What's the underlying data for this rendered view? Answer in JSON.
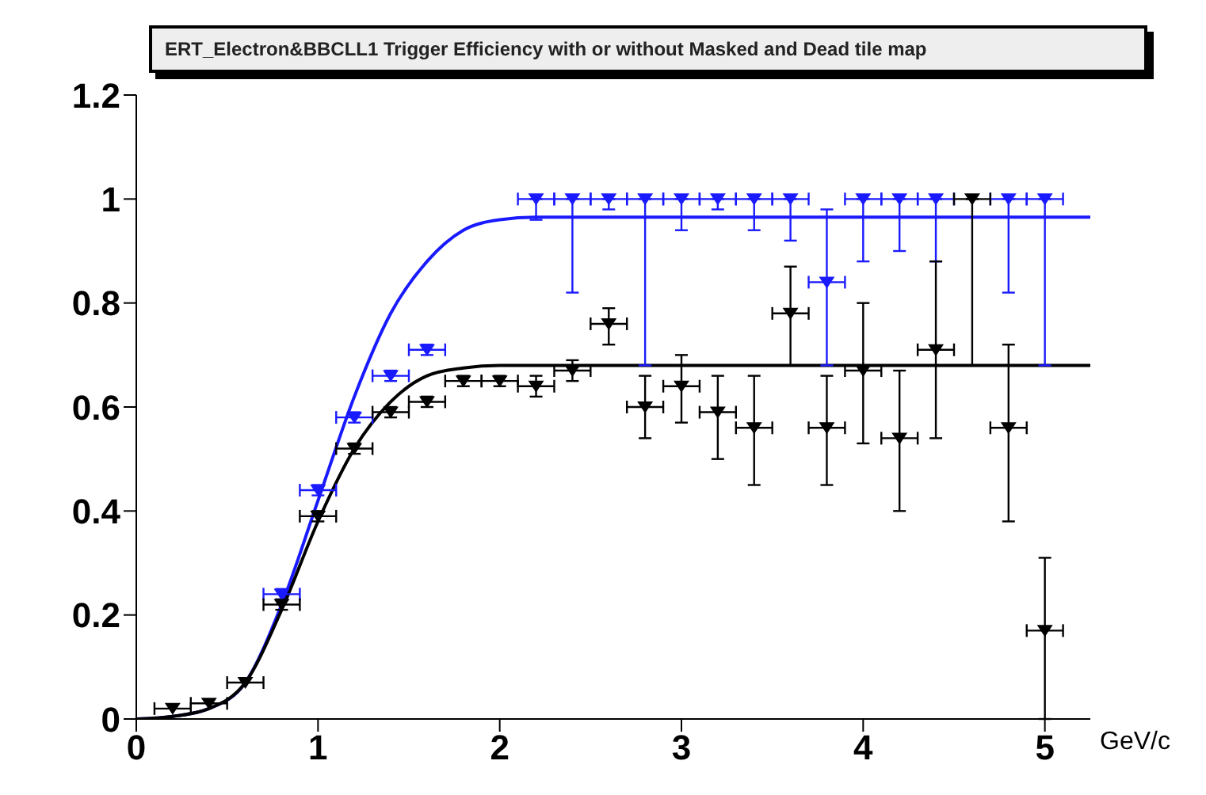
{
  "chart_data": {
    "type": "scatter",
    "title": "ERT_Electron&BBCLL1 Trigger Efficiency with or without Masked and Dead tile map",
    "xlabel": "GeV/c",
    "xlim": [
      0,
      5.25
    ],
    "xticks": [
      0,
      1,
      2,
      3,
      4,
      5
    ],
    "ylim": [
      0,
      1.2
    ],
    "yticks": [
      0,
      0.2,
      0.4,
      0.6,
      0.8,
      1,
      1.2
    ],
    "grid": false,
    "series": [
      {
        "type": "line",
        "marker": "none",
        "color": "#1a1aff",
        "x": [
          0,
          0.2,
          0.4,
          0.6,
          0.8,
          1.0,
          1.2,
          1.4,
          1.6,
          1.8,
          2.0,
          2.2,
          5.25
        ],
        "values": [
          0,
          0.005,
          0.02,
          0.07,
          0.22,
          0.42,
          0.62,
          0.78,
          0.88,
          0.94,
          0.96,
          0.965,
          0.965
        ]
      },
      {
        "type": "line",
        "marker": "none",
        "color": "#000000",
        "x": [
          0,
          0.2,
          0.4,
          0.6,
          0.8,
          1.0,
          1.2,
          1.4,
          1.6,
          1.8,
          2.0,
          5.25
        ],
        "values": [
          0,
          0.005,
          0.02,
          0.07,
          0.21,
          0.38,
          0.52,
          0.61,
          0.66,
          0.675,
          0.68,
          0.68
        ]
      },
      {
        "marker": "triangle",
        "color": "#1a1aff",
        "x": [
          0.8,
          1.0,
          1.2,
          1.4,
          1.6,
          1.8,
          2.0,
          2.2,
          2.4,
          2.6,
          2.8,
          3.0,
          3.2,
          3.4,
          3.6,
          3.8,
          4.0,
          4.2,
          4.4,
          4.6,
          4.8,
          5.0
        ],
        "values": [
          0.24,
          0.44,
          0.58,
          0.66,
          0.71,
          null,
          null,
          1.0,
          1.0,
          1.0,
          1.0,
          1.0,
          1.0,
          1.0,
          1.0,
          0.84,
          1.0,
          1.0,
          1.0,
          null,
          1.0,
          1.0
        ],
        "errors": [
          0.01,
          0.01,
          0.01,
          0.01,
          0.01,
          null,
          null,
          [
            0.96,
            1.0
          ],
          [
            0.82,
            1.0
          ],
          [
            0.98,
            1.0
          ],
          [
            0.68,
            1.0
          ],
          [
            0.94,
            1.0
          ],
          [
            0.98,
            1.0
          ],
          [
            0.94,
            1.0
          ],
          [
            0.92,
            1.0
          ],
          [
            0.68,
            0.98
          ],
          [
            0.88,
            1.0
          ],
          [
            0.9,
            1.0
          ],
          [
            0.88,
            1.0
          ],
          null,
          [
            0.82,
            1.0
          ],
          [
            0.68,
            1.0
          ]
        ],
        "xerrors": [
          0.1,
          0.1,
          0.1,
          0.1,
          0.1,
          null,
          null,
          0.1,
          0.1,
          0.1,
          0.1,
          0.1,
          0.1,
          0.1,
          0.1,
          0.1,
          0.1,
          0.1,
          0.1,
          null,
          0.1,
          0.1
        ]
      },
      {
        "marker": "triangle",
        "color": "#000000",
        "x": [
          0.2,
          0.4,
          0.6,
          0.8,
          1.0,
          1.2,
          1.4,
          1.6,
          1.8,
          2.0,
          2.2,
          2.4,
          2.6,
          2.8,
          3.0,
          3.2,
          3.4,
          3.6,
          3.8,
          4.0,
          4.2,
          4.4,
          4.6,
          4.8,
          5.0
        ],
        "values": [
          0.02,
          0.03,
          0.07,
          0.22,
          0.39,
          0.52,
          0.59,
          0.61,
          0.65,
          0.65,
          0.64,
          0.67,
          0.76,
          0.6,
          0.64,
          0.59,
          0.56,
          0.78,
          0.56,
          0.67,
          0.54,
          0.71,
          1.0,
          0.56,
          0.17
        ],
        "errors": [
          null,
          null,
          null,
          0.01,
          0.01,
          0.01,
          0.01,
          0.01,
          0.01,
          0.01,
          0.02,
          0.02,
          [
            0.72,
            0.79
          ],
          [
            0.54,
            0.66
          ],
          [
            0.57,
            0.7
          ],
          [
            0.5,
            0.66
          ],
          [
            0.45,
            0.66
          ],
          [
            0.68,
            0.87
          ],
          [
            0.45,
            0.66
          ],
          [
            0.53,
            0.8
          ],
          [
            0.4,
            0.67
          ],
          [
            0.54,
            0.88
          ],
          [
            0.68,
            1.0
          ],
          [
            0.38,
            0.72
          ],
          [
            0,
            0.31
          ]
        ],
        "xerrors": [
          0.1,
          0.1,
          0.1,
          0.1,
          0.1,
          0.1,
          0.1,
          0.1,
          0.1,
          0.1,
          0.1,
          0.1,
          0.1,
          0.1,
          0.1,
          0.1,
          0.1,
          0.1,
          0.1,
          0.1,
          0.1,
          0.1,
          0.1,
          0.1,
          0.1
        ]
      }
    ]
  }
}
